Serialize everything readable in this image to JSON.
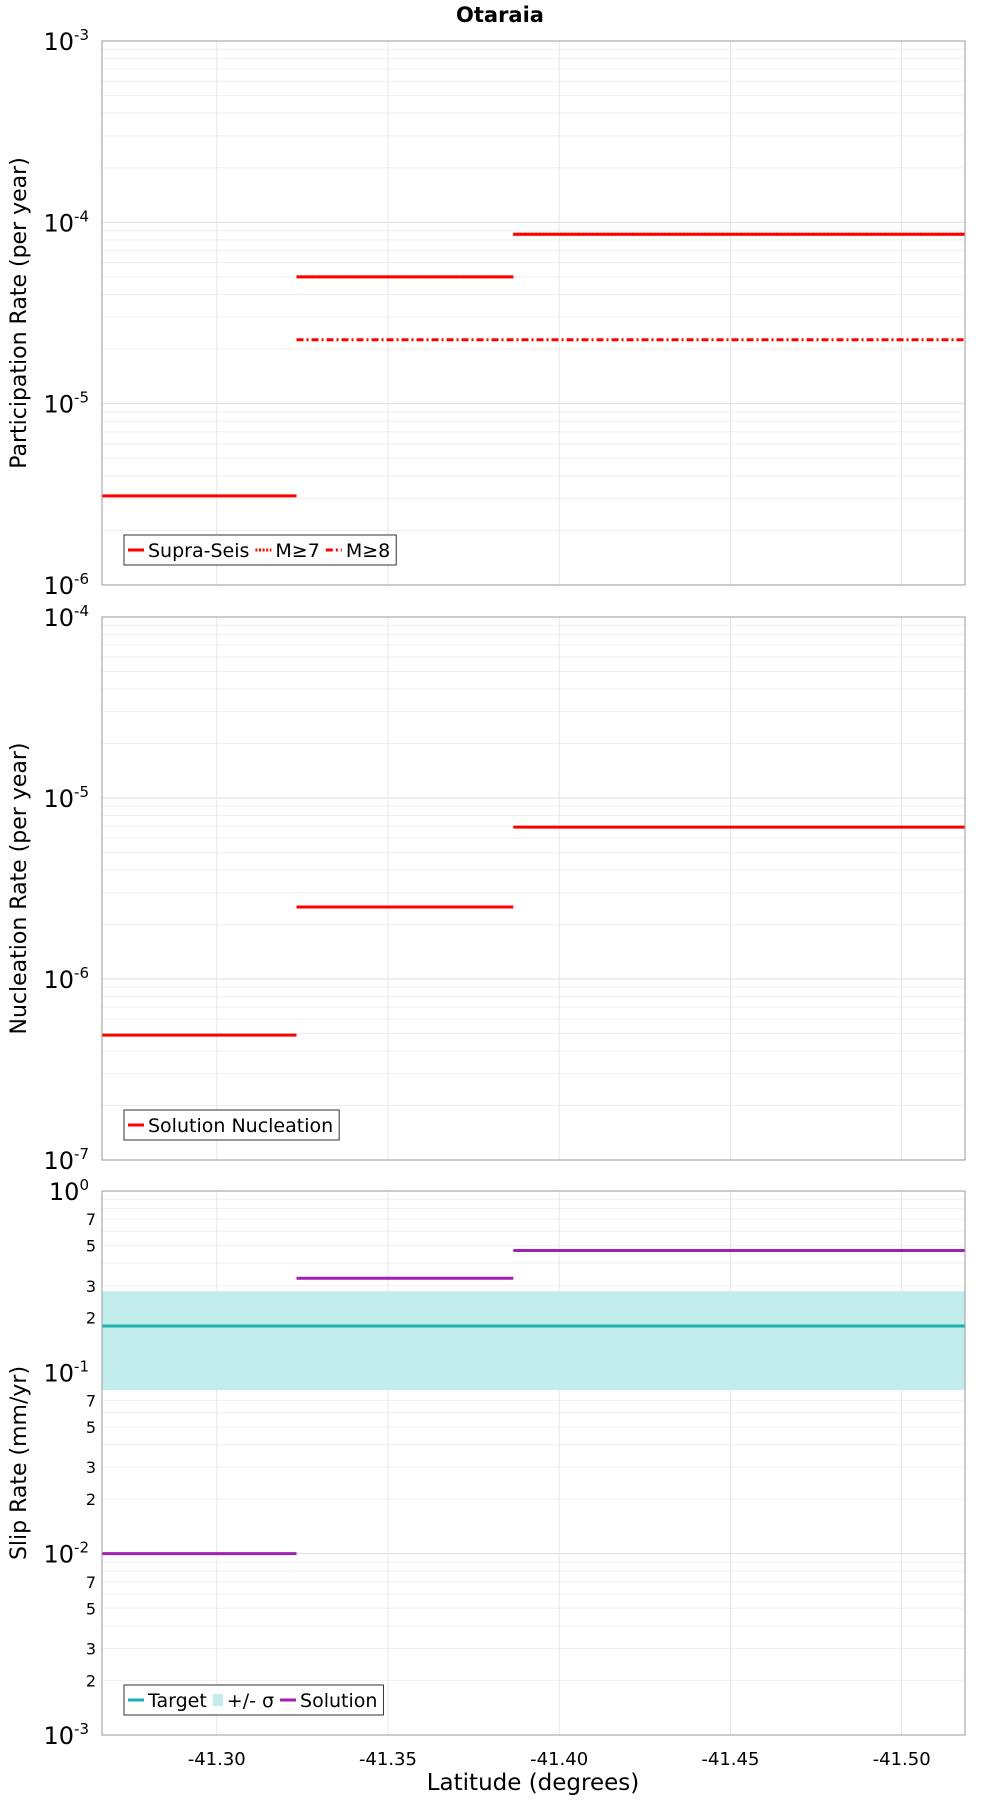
{
  "chart_data": {
    "title": "Otaraia",
    "xlabel": "Latitude (degrees)",
    "xlim": [
      -41.2665,
      -41.5185
    ],
    "x_ticks": [
      -41.3,
      -41.35,
      -41.4,
      -41.45,
      -41.5
    ],
    "x_tick_labels": [
      "-41.30",
      "-41.35",
      "-41.40",
      "-41.45",
      "-41.50"
    ],
    "panels": [
      {
        "type": "line",
        "ylabel": "Participation Rate (per year)",
        "y_scale": "log",
        "ylim": [
          1e-06,
          0.001
        ],
        "y_ticks": [
          {
            "value": 1e-06,
            "base": "10",
            "exp": "-6"
          },
          {
            "value": 1e-05,
            "base": "10",
            "exp": "-5"
          },
          {
            "value": 0.0001,
            "base": "10",
            "exp": "-4"
          },
          {
            "value": 0.001,
            "base": "10",
            "exp": "-3"
          }
        ],
        "minor_labels": [],
        "legend_position": "bottom-left",
        "legend": [
          {
            "label": "Supra-Seis",
            "color": "#ff0000",
            "style": "solid"
          },
          {
            "label": "M≥7",
            "color": "#ff0000",
            "style": "dotted"
          },
          {
            "label": "M≥8",
            "color": "#ff0000",
            "style": "dashdot"
          }
        ],
        "series": [
          {
            "name": "Supra-Seis",
            "color": "#ff0000",
            "style": "solid",
            "segments": [
              {
                "x": [
                  -41.2665,
                  -41.3233
                ],
                "y": 3.1e-06
              },
              {
                "x": [
                  -41.3233,
                  -41.3866
                ],
                "y": 5e-05
              },
              {
                "x": [
                  -41.3866,
                  -41.5185
                ],
                "y": 8.6e-05
              }
            ]
          },
          {
            "name": "M≥7",
            "color": "#ff0000",
            "style": "dotted",
            "segments": [
              {
                "x": [
                  -41.3233,
                  -41.3866
                ],
                "y": 5e-05
              },
              {
                "x": [
                  -41.3866,
                  -41.5185
                ],
                "y": 8.6e-05
              }
            ]
          },
          {
            "name": "M≥8",
            "color": "#ff0000",
            "style": "dashdot",
            "segments": [
              {
                "x": [
                  -41.3233,
                  -41.5185
                ],
                "y": 2.25e-05
              }
            ]
          }
        ]
      },
      {
        "type": "line",
        "ylabel": "Nucleation Rate (per year)",
        "y_scale": "log",
        "ylim": [
          1e-07,
          0.0001
        ],
        "y_ticks": [
          {
            "value": 1e-07,
            "base": "10",
            "exp": "-7"
          },
          {
            "value": 1e-06,
            "base": "10",
            "exp": "-6"
          },
          {
            "value": 1e-05,
            "base": "10",
            "exp": "-5"
          },
          {
            "value": 0.0001,
            "base": "10",
            "exp": "-4"
          }
        ],
        "minor_labels": [],
        "legend_position": "bottom-left",
        "legend": [
          {
            "label": "Solution Nucleation",
            "color": "#ff0000",
            "style": "solid"
          }
        ],
        "series": [
          {
            "name": "Solution Nucleation",
            "color": "#ff0000",
            "style": "solid",
            "segments": [
              {
                "x": [
                  -41.2665,
                  -41.3233
                ],
                "y": 4.9e-07
              },
              {
                "x": [
                  -41.3233,
                  -41.3866
                ],
                "y": 2.5e-06
              },
              {
                "x": [
                  -41.3866,
                  -41.5185
                ],
                "y": 6.9e-06
              }
            ]
          }
        ]
      },
      {
        "type": "line",
        "ylabel": "Slip Rate (mm/yr)",
        "y_scale": "log",
        "ylim": [
          0.001,
          1
        ],
        "y_ticks": [
          {
            "value": 0.001,
            "base": "10",
            "exp": "-3"
          },
          {
            "value": 0.01,
            "base": "10",
            "exp": "-2"
          },
          {
            "value": 0.1,
            "base": "10",
            "exp": "-1"
          },
          {
            "value": 1,
            "base": "10",
            "exp": "0"
          }
        ],
        "minor_labels": [
          {
            "value": 0.002,
            "label": "2"
          },
          {
            "value": 0.003,
            "label": "3"
          },
          {
            "value": 0.005,
            "label": "5"
          },
          {
            "value": 0.007,
            "label": "7"
          },
          {
            "value": 0.02,
            "label": "2"
          },
          {
            "value": 0.03,
            "label": "3"
          },
          {
            "value": 0.05,
            "label": "5"
          },
          {
            "value": 0.07,
            "label": "7"
          },
          {
            "value": 0.2,
            "label": "2"
          },
          {
            "value": 0.3,
            "label": "3"
          },
          {
            "value": 0.5,
            "label": "5"
          },
          {
            "value": 0.7,
            "label": "7"
          }
        ],
        "legend_position": "bottom-left",
        "legend": [
          {
            "label": "Target",
            "color": "#1fb0b0",
            "style": "solid"
          },
          {
            "label": "+/- σ",
            "color": "#c3ecec",
            "style": "band"
          },
          {
            "label": "Solution",
            "color": "#a020b0",
            "style": "solid"
          }
        ],
        "bands": [
          {
            "name": "+/- σ",
            "color": "#c3ecec",
            "x": [
              -41.2665,
              -41.5185
            ],
            "y": [
              0.08,
              0.28
            ]
          }
        ],
        "series": [
          {
            "name": "Target",
            "color": "#1fb0b0",
            "style": "solid",
            "segments": [
              {
                "x": [
                  -41.2665,
                  -41.5185
                ],
                "y": 0.18
              }
            ]
          },
          {
            "name": "Solution",
            "color": "#a020b0",
            "style": "solid",
            "segments": [
              {
                "x": [
                  -41.2665,
                  -41.3233
                ],
                "y": 0.01
              },
              {
                "x": [
                  -41.3233,
                  -41.3866
                ],
                "y": 0.33
              },
              {
                "x": [
                  -41.3866,
                  -41.5185
                ],
                "y": 0.47
              }
            ]
          }
        ]
      }
    ]
  }
}
